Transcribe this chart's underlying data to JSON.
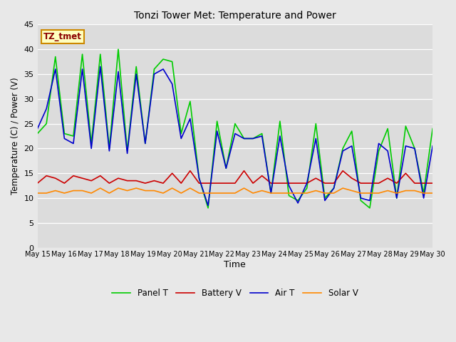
{
  "title": "Tonzi Tower Met: Temperature and Power",
  "xlabel": "Time",
  "ylabel": "Temperature (C) / Power (V)",
  "ylim": [
    0,
    45
  ],
  "yticks": [
    0,
    5,
    10,
    15,
    20,
    25,
    30,
    35,
    40,
    45
  ],
  "annotation_text": "TZ_tmet",
  "annotation_box_facecolor": "#FFFFC0",
  "annotation_text_color": "#8B0000",
  "annotation_edge_color": "#CC8800",
  "fig_facecolor": "#E8E8E8",
  "axes_facecolor": "#DCDCDC",
  "grid_color": "#FFFFFF",
  "colors": {
    "panel_t": "#00CC00",
    "battery_v": "#CC0000",
    "air_t": "#0000CC",
    "solar_v": "#FF8800"
  },
  "x_tick_labels": [
    "May 15",
    "May 16",
    "May 17",
    "May 18",
    "May 19",
    "May 20",
    "May 21",
    "May 22",
    "May 23",
    "May 24",
    "May 25",
    "May 26",
    "May 27",
    "May 28",
    "May 29",
    "May 30"
  ],
  "n_days": 16,
  "panel_t": [
    23,
    25,
    38.5,
    23,
    22.5,
    39,
    21,
    39,
    20,
    40,
    19.5,
    36.5,
    21,
    36,
    38,
    37.5,
    23,
    29.5,
    14,
    8,
    25.5,
    16,
    25,
    22,
    22,
    23,
    11,
    25.5,
    10.5,
    9.5,
    12,
    25,
    10,
    12,
    20,
    23.5,
    9.5,
    8,
    19.5,
    24,
    10,
    24.5,
    20,
    11,
    24
  ],
  "battery_v": [
    13,
    14.5,
    14,
    13,
    14.5,
    14,
    13.5,
    14.5,
    13,
    14,
    13.5,
    13.5,
    13,
    13.5,
    13,
    15,
    13,
    15.5,
    13,
    13,
    13,
    13,
    13,
    15.5,
    13,
    14.5,
    13,
    13,
    13,
    13,
    13,
    14,
    13,
    13,
    15.5,
    14,
    13,
    13,
    13,
    14,
    13,
    15,
    13,
    13,
    13
  ],
  "air_t": [
    24,
    28,
    36,
    22,
    21,
    36,
    20,
    36.5,
    19.5,
    35.5,
    19,
    35,
    21,
    35,
    36,
    33,
    22,
    26,
    14,
    8.5,
    23.5,
    16,
    23,
    22,
    22,
    22.5,
    11,
    22.5,
    12.5,
    9,
    13,
    22,
    9.5,
    12,
    19.5,
    20.5,
    10,
    9.5,
    21,
    19.5,
    10,
    20.5,
    20,
    10,
    20.5
  ],
  "solar_v": [
    11,
    11,
    11.5,
    11,
    11.5,
    11.5,
    11,
    12,
    11,
    12,
    11.5,
    12,
    11.5,
    11.5,
    11,
    12,
    11,
    12,
    11,
    11,
    11,
    11,
    11,
    12,
    11,
    11.5,
    11,
    11,
    11,
    11,
    11,
    11.5,
    11,
    11,
    12,
    11.5,
    11,
    11,
    11,
    11.5,
    11,
    11.5,
    11.5,
    11,
    11
  ]
}
